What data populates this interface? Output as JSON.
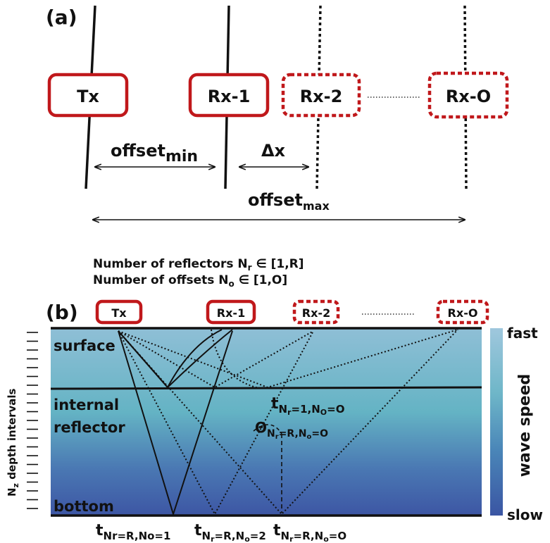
{
  "panel_a": {
    "label": "(a)",
    "tx": "Tx",
    "rx1": "Rx-1",
    "rx2": "Rx-2",
    "rxo": "Rx-O",
    "offset_min_base": "offset",
    "offset_min_sub": "min",
    "delta_x": "Δx",
    "offset_max_base": "offset",
    "offset_max_sub": "max"
  },
  "legend": {
    "reflectors_prefix": "Number of reflectors N",
    "reflectors_sub": "r",
    "reflectors_suffix": " ∈ [1,R]",
    "offsets_prefix": "Number of offsets N",
    "offsets_sub": "o",
    "offsets_suffix": " ∈ [1,O]"
  },
  "panel_b": {
    "label": "(b)",
    "tx": "Tx",
    "rx1": "Rx-1",
    "rx2": "Rx-2",
    "rxo": "Rx-O",
    "surface": "surface",
    "internal": "internal",
    "reflector": "reflector",
    "bottom": "bottom",
    "depth_axis": "N",
    "depth_axis_sub": "z",
    "depth_axis_rest": " depth intervals",
    "t_mid_base": "t",
    "t_mid_sub": "N",
    "t_mid_subsub": "r",
    "t_mid_rest": "=1,N",
    "t_mid_subsub2": "O",
    "t_mid_tail": "=O",
    "theta_base": "Θ",
    "theta_sub": "N",
    "theta_subsub": "r",
    "theta_rest": "=R,N",
    "theta_subsub2": "o",
    "theta_tail": "=O",
    "tb1_base": "t",
    "tb1_sub": "Nr=R,No=1",
    "tb2_base": "t",
    "tb2_sub": "N",
    "tb2_subsub": "r",
    "tb2_rest": "=R,N",
    "tb2_subsub2": "o",
    "tb2_tail": "=2",
    "tb3_base": "t",
    "tb3_sub": "N",
    "tb3_subsub": "r",
    "tb3_rest": "=R,N",
    "tb3_subsub2": "o",
    "tb3_tail": "=O"
  },
  "colorbar": {
    "fast": "fast",
    "slow": "slow",
    "label": "wave speed",
    "color_top": "#9ec6dc",
    "color_mid": "#62b3c4",
    "color_bottom": "#3a55a3"
  },
  "colors": {
    "box_red": "#c0181b",
    "line": "#111111"
  }
}
